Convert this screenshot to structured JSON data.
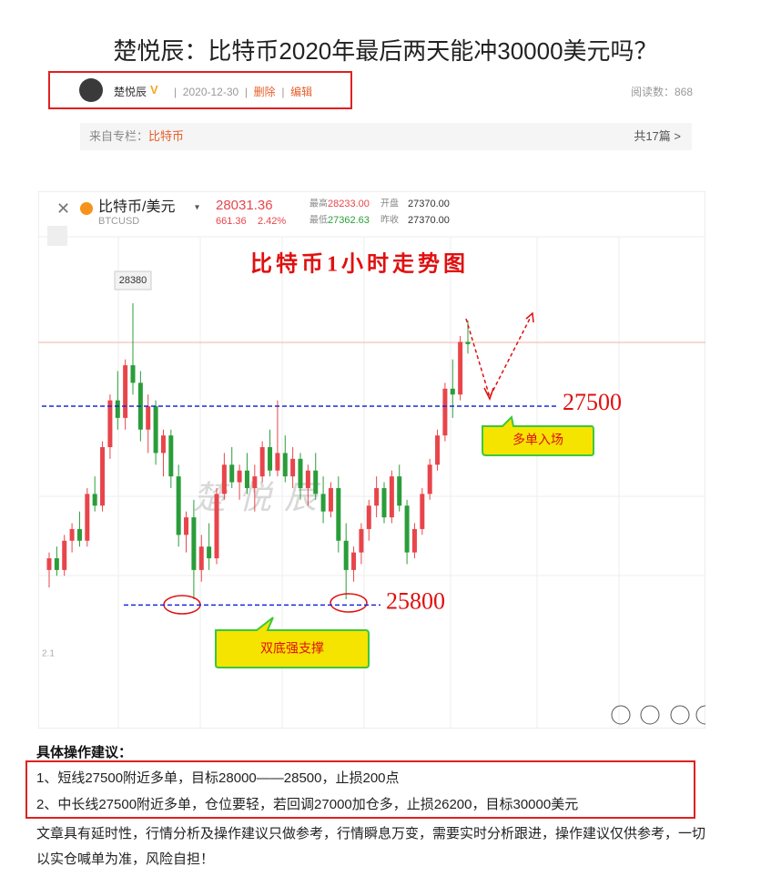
{
  "article": {
    "title": "楚悦辰：比特币2020年最后两天能冲30000美元吗？",
    "author": "楚悦辰",
    "date": "2020-12-30",
    "actions": [
      "删除",
      "编辑"
    ],
    "read_count": "阅读数：868",
    "column_label": "来自专栏：",
    "column_name": "比特币",
    "column_count": "共17篇"
  },
  "chart": {
    "type": "candlestick",
    "pair": "比特币/美元",
    "symbol": "BTCUSD",
    "price": "28031.36",
    "change": "661.36",
    "change_pct": "2.42%",
    "stats": [
      {
        "label": "最高",
        "value": "28233.00"
      },
      {
        "label": "开盘",
        "value": "27370.00"
      },
      {
        "label": "最低",
        "value": "27362.63"
      },
      {
        "label": "昨收",
        "value": "27370.00"
      }
    ],
    "title": "比特币1小时走势图",
    "peak_label": "28380",
    "watermark": "楚悦辰",
    "axis_fragment": "2.1",
    "levels": [
      {
        "label": "27500",
        "callout": "多单入场"
      },
      {
        "label": "25800",
        "callout": "双底强支撑"
      }
    ],
    "candles": [
      [
        26100,
        26250,
        25950,
        26200
      ],
      [
        26200,
        26300,
        26050,
        26100
      ],
      [
        26100,
        26400,
        26050,
        26350
      ],
      [
        26350,
        26500,
        26250,
        26450
      ],
      [
        26450,
        26600,
        26300,
        26350
      ],
      [
        26350,
        26800,
        26300,
        26750
      ],
      [
        26750,
        26900,
        26600,
        26650
      ],
      [
        26650,
        27200,
        26600,
        27150
      ],
      [
        27150,
        27600,
        27050,
        27550
      ],
      [
        27550,
        27800,
        27300,
        27400
      ],
      [
        27400,
        27900,
        27300,
        27850
      ],
      [
        27850,
        28380,
        27600,
        27700
      ],
      [
        27700,
        27800,
        27200,
        27300
      ],
      [
        27300,
        27600,
        27100,
        27500
      ],
      [
        27500,
        27550,
        27000,
        27100
      ],
      [
        27100,
        27300,
        26900,
        27250
      ],
      [
        27250,
        27300,
        26800,
        26900
      ],
      [
        26900,
        27000,
        26300,
        26400
      ],
      [
        26400,
        26600,
        26250,
        26550
      ],
      [
        26550,
        26700,
        25850,
        26100
      ],
      [
        26100,
        26400,
        26000,
        26300
      ],
      [
        26300,
        26500,
        26100,
        26200
      ],
      [
        26200,
        26800,
        26150,
        26750
      ],
      [
        26750,
        27100,
        26700,
        27000
      ],
      [
        27000,
        27150,
        26800,
        26850
      ],
      [
        26850,
        27000,
        26700,
        26950
      ],
      [
        26950,
        27100,
        26750,
        26800
      ],
      [
        26800,
        27000,
        26600,
        26900
      ],
      [
        26900,
        27200,
        26850,
        27150
      ],
      [
        27150,
        27300,
        26900,
        26950
      ],
      [
        26950,
        27550,
        26900,
        27100
      ],
      [
        27100,
        27250,
        26850,
        26900
      ],
      [
        26900,
        27150,
        26800,
        27050
      ],
      [
        27050,
        27100,
        26700,
        26800
      ],
      [
        26800,
        27000,
        26650,
        26950
      ],
      [
        26950,
        27100,
        26700,
        26750
      ],
      [
        26750,
        26900,
        26500,
        26600
      ],
      [
        26600,
        26850,
        26550,
        26800
      ],
      [
        26800,
        26900,
        26250,
        26350
      ],
      [
        26350,
        26500,
        25850,
        26100
      ],
      [
        26100,
        26300,
        26000,
        26250
      ],
      [
        26250,
        26500,
        26150,
        26450
      ],
      [
        26450,
        26700,
        26350,
        26650
      ],
      [
        26650,
        26900,
        26550,
        26800
      ],
      [
        26800,
        26850,
        26500,
        26550
      ],
      [
        26550,
        26950,
        26500,
        26900
      ],
      [
        26900,
        27000,
        26600,
        26650
      ],
      [
        26650,
        26700,
        26150,
        26250
      ],
      [
        26250,
        26500,
        26200,
        26450
      ],
      [
        26450,
        26800,
        26400,
        26750
      ],
      [
        26750,
        27050,
        26700,
        27000
      ],
      [
        27000,
        27300,
        26950,
        27250
      ],
      [
        27250,
        27700,
        27200,
        27650
      ],
      [
        27650,
        27900,
        27400,
        27600
      ],
      [
        27600,
        28100,
        27550,
        28050
      ],
      [
        28050,
        28233,
        27950,
        28031
      ]
    ]
  },
  "advice": {
    "heading": "具体操作建议：",
    "lines": [
      "1、短线27500附近多单，目标28000——28500，止损200点",
      "2、中长线27500附近多单，仓位要轻，若回调27000加仓多，止损26200，目标30000美元"
    ],
    "disclaimer": "文章具有延时性，行情分析及操作建议只做参考，行情瞬息万变，需要实时分析跟进，操作建议仅供参考，一切以实仓喊单为准，风险自担！"
  }
}
